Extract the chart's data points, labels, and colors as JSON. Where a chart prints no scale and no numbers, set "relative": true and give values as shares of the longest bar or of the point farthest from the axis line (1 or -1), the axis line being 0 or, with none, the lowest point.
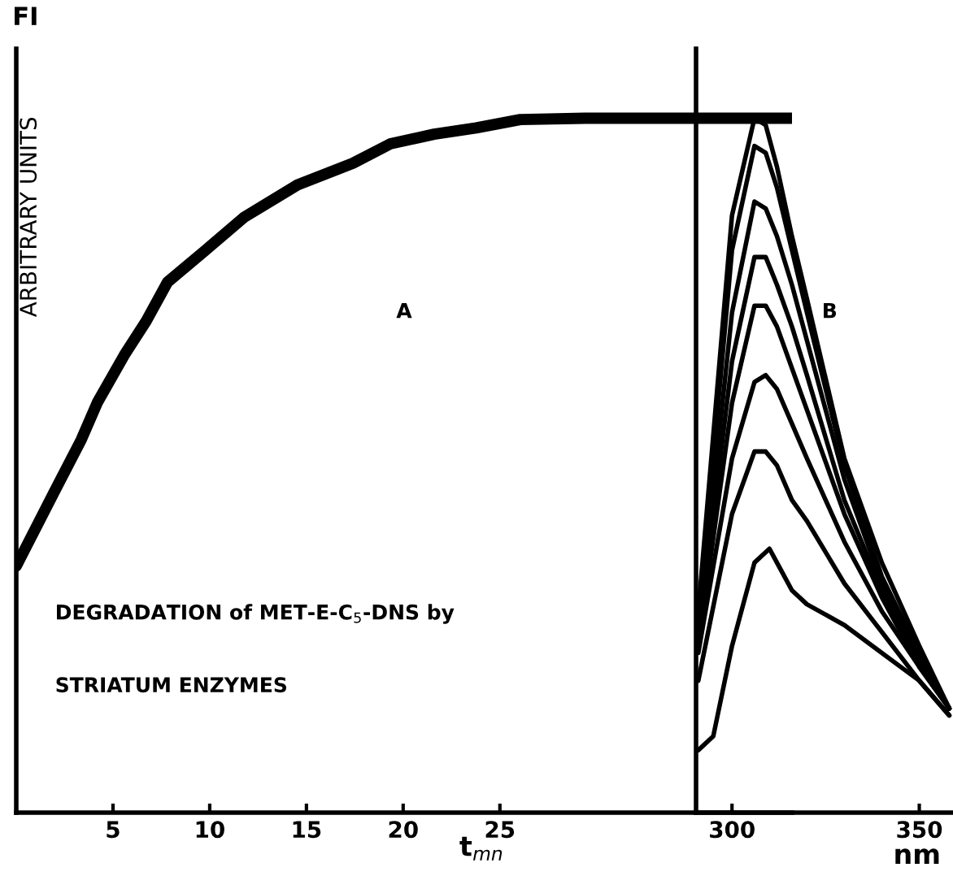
{
  "chart_data": [
    {
      "type": "line",
      "relative": true,
      "color": "#000000",
      "x": [
        0,
        1.93,
        3.36,
        4.2,
        5.63,
        6.72,
        7.82,
        9.83,
        11.76,
        14.54,
        17.39,
        19.33,
        21.6,
        23.78,
        26.05,
        29.4,
        35.1,
        40.1
      ],
      "values": [
        0.355,
        0.46,
        0.537,
        0.591,
        0.661,
        0.708,
        0.764,
        0.811,
        0.857,
        0.904,
        0.935,
        0.963,
        0.977,
        0.986,
        0.998,
        1.0,
        1.0,
        1.0
      ],
      "xlim": [
        0,
        40.1
      ],
      "xticks": [
        5,
        10,
        15,
        20,
        25
      ],
      "xlabel": "t$_{mn}$",
      "ylabel": "ARBITRARY UNITS",
      "tick_labels": "x",
      "grid": false,
      "annotations": [
        "FI",
        "A",
        "DEGRADATION of MET-E-C$_{5}$-DNS by",
        "STRIATUM ENZYMES"
      ]
    },
    {
      "type": "line",
      "relative": true,
      "xlim": [
        290.4,
        359
      ],
      "xticks": [
        300,
        350
      ],
      "xlabel": "nm",
      "tick_labels": "x",
      "grid": false,
      "annotations": [
        "B"
      ],
      "series": [
        {
          "color": "#000000",
          "x": [
            291,
            300,
            306,
            309,
            312,
            316,
            320,
            330,
            340,
            350,
            358
          ],
          "values": [
            0.29,
            0.86,
            1.0,
            0.99,
            0.93,
            0.83,
            0.74,
            0.51,
            0.36,
            0.24,
            0.15
          ]
        },
        {
          "color": "#000000",
          "x": [
            291,
            300,
            306,
            309,
            312,
            316,
            320,
            330,
            340,
            350,
            358
          ],
          "values": [
            0.27,
            0.81,
            0.96,
            0.95,
            0.9,
            0.81,
            0.72,
            0.5,
            0.34,
            0.23,
            0.15
          ]
        },
        {
          "color": "#000000",
          "x": [
            291,
            300,
            306,
            309,
            312,
            316,
            320,
            330,
            340,
            350,
            358
          ],
          "values": [
            0.26,
            0.72,
            0.88,
            0.87,
            0.83,
            0.76,
            0.68,
            0.48,
            0.33,
            0.23,
            0.15
          ]
        },
        {
          "color": "#000000",
          "x": [
            291,
            300,
            306,
            309,
            312,
            316,
            320,
            330,
            340,
            350,
            358
          ],
          "values": [
            0.25,
            0.65,
            0.8,
            0.8,
            0.76,
            0.7,
            0.63,
            0.45,
            0.32,
            0.22,
            0.15
          ]
        },
        {
          "color": "#000000",
          "x": [
            291,
            300,
            306,
            309,
            312,
            316,
            320,
            330,
            340,
            350,
            358
          ],
          "values": [
            0.24,
            0.59,
            0.73,
            0.73,
            0.7,
            0.64,
            0.58,
            0.43,
            0.31,
            0.21,
            0.15
          ]
        },
        {
          "color": "#000000",
          "x": [
            291,
            300,
            306,
            309,
            312,
            316,
            320,
            330,
            340,
            350,
            358
          ],
          "values": [
            0.23,
            0.51,
            0.62,
            0.63,
            0.61,
            0.56,
            0.51,
            0.39,
            0.29,
            0.21,
            0.15
          ]
        },
        {
          "color": "#000000",
          "x": [
            291,
            300,
            306,
            309,
            312,
            316,
            320,
            330,
            340,
            350,
            358
          ],
          "values": [
            0.19,
            0.43,
            0.52,
            0.52,
            0.5,
            0.45,
            0.42,
            0.33,
            0.26,
            0.19,
            0.14
          ]
        },
        {
          "color": "#000000",
          "x": [
            291,
            295,
            300,
            306,
            310,
            312,
            316,
            320,
            330,
            340,
            350,
            358
          ],
          "values": [
            0.09,
            0.11,
            0.24,
            0.36,
            0.38,
            0.36,
            0.32,
            0.3,
            0.27,
            0.23,
            0.19,
            0.14
          ]
        }
      ]
    }
  ]
}
